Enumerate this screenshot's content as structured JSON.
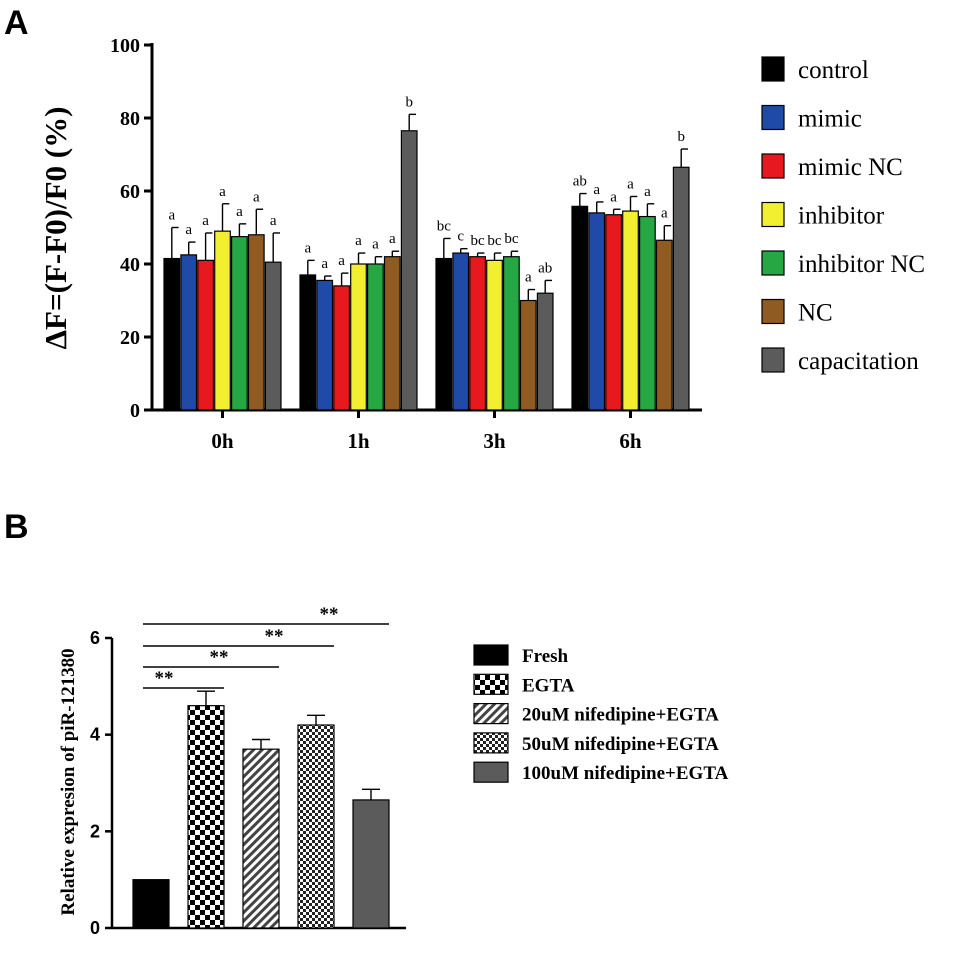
{
  "panels": {
    "a": "A",
    "b": "B"
  },
  "chart_data": [
    {
      "type": "bar",
      "panel": "A",
      "title": "",
      "xlabel": "",
      "ylabel": "ΔF=(F-F0)/F0 (%)",
      "ylim": [
        0,
        100
      ],
      "yticks": [
        0,
        20,
        40,
        60,
        80,
        100
      ],
      "categories": [
        "0h",
        "1h",
        "3h",
        "6h"
      ],
      "legend_position": "right",
      "series": [
        {
          "name": "control",
          "color": "#000000",
          "values": [
            41.5,
            37.0,
            41.5,
            55.8
          ],
          "errors": [
            8.5,
            4.0,
            5.5,
            3.5
          ],
          "letters": [
            "a",
            "a",
            "bc",
            "ab"
          ]
        },
        {
          "name": "mimic",
          "color": "#1f4aa8",
          "values": [
            42.5,
            35.5,
            43.0,
            54.0
          ],
          "errors": [
            3.5,
            1.2,
            1.2,
            3.0
          ],
          "letters": [
            "a",
            "a",
            "c",
            "a"
          ]
        },
        {
          "name": "mimic NC",
          "color": "#e8191e",
          "values": [
            41.0,
            34.0,
            42.0,
            53.5
          ],
          "errors": [
            7.5,
            3.5,
            1.0,
            1.5
          ],
          "letters": [
            "a",
            "a",
            "bc",
            "a"
          ]
        },
        {
          "name": "inhibitor",
          "color": "#f2ee30",
          "values": [
            49.0,
            40.0,
            41.0,
            54.5
          ],
          "errors": [
            7.5,
            3.0,
            2.0,
            4.0
          ],
          "letters": [
            "a",
            "a",
            "bc",
            "a"
          ]
        },
        {
          "name": "inhibitor NC",
          "color": "#27a744",
          "values": [
            47.5,
            40.0,
            42.0,
            53.0
          ],
          "errors": [
            3.5,
            2.0,
            1.5,
            3.5
          ],
          "letters": [
            "a",
            "a",
            "bc",
            "a"
          ]
        },
        {
          "name": "NC",
          "color": "#8f5b22",
          "values": [
            48.0,
            42.0,
            30.0,
            46.5
          ],
          "errors": [
            7.0,
            1.5,
            3.0,
            4.0
          ],
          "letters": [
            "a",
            "a",
            "a",
            "a"
          ]
        },
        {
          "name": "capacitation",
          "color": "#5b5b5b",
          "values": [
            40.5,
            76.5,
            32.0,
            66.5
          ],
          "errors": [
            8.0,
            4.5,
            3.5,
            5.0
          ],
          "letters": [
            "a",
            "b",
            "ab",
            "b"
          ]
        }
      ]
    },
    {
      "type": "bar",
      "panel": "B",
      "title": "",
      "xlabel": "",
      "ylabel": "Relative expresion of piR-121380",
      "ylim": [
        0,
        6
      ],
      "yticks": [
        0,
        2,
        4,
        6
      ],
      "categories": [
        "Fresh",
        "EGTA",
        "20uM nifedipine+EGTA",
        "50uM nifedipine+EGTA",
        "100uM nifedipine+EGTA"
      ],
      "values": [
        1.0,
        4.6,
        3.7,
        4.2,
        2.65
      ],
      "errors": [
        0.0,
        0.3,
        0.2,
        0.2,
        0.22
      ],
      "patterns": [
        "solid-black",
        "checker-coarse",
        "diagonal-hatch",
        "checker-fine",
        "solid-gray"
      ],
      "legend_position": "right",
      "significance": [
        {
          "from": "Fresh",
          "to": "EGTA",
          "label": "**"
        },
        {
          "from": "Fresh",
          "to": "20uM nifedipine+EGTA",
          "label": "**"
        },
        {
          "from": "Fresh",
          "to": "50uM nifedipine+EGTA",
          "label": "**"
        },
        {
          "from": "Fresh",
          "to": "100uM nifedipine+EGTA",
          "label": "**"
        }
      ]
    }
  ]
}
